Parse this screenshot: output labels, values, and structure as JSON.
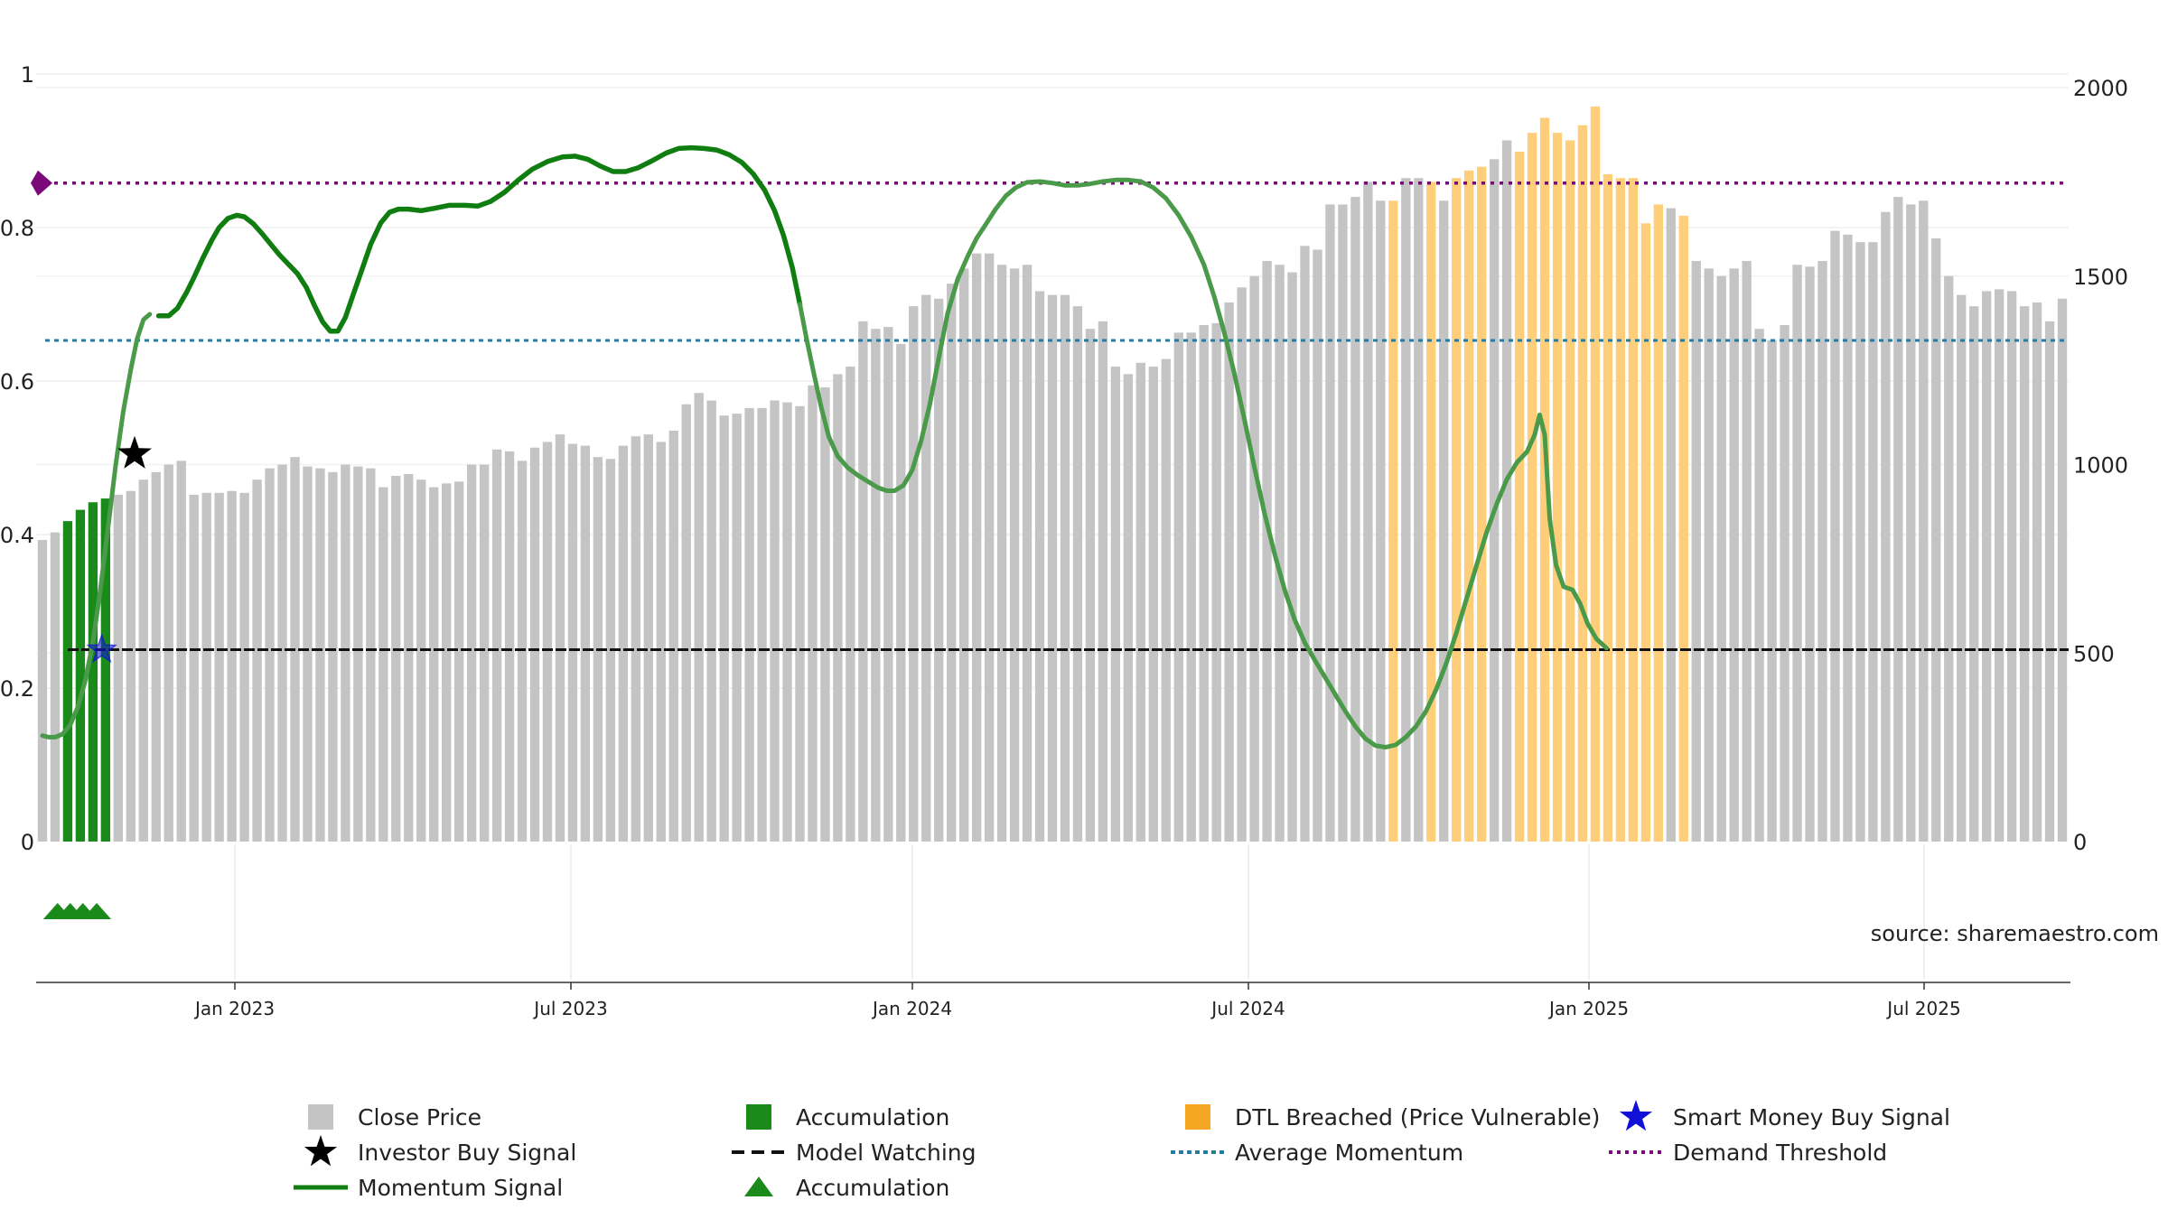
{
  "chart_data": {
    "type": "bar",
    "title": "",
    "source_text": "source: sharemaestro.com",
    "x_axis": {
      "tick_labels": [
        "Jan 2023",
        "Jul 2023",
        "Jan 2024",
        "Jul 2024",
        "Jan 2025",
        "Jul 2025"
      ],
      "range": [
        "2022-09",
        "2025-09"
      ]
    },
    "left_axis": {
      "tick_labels": [
        "0",
        "0.2",
        "0.4",
        "0.6",
        "0.8",
        "1"
      ],
      "range": [
        0,
        1
      ]
    },
    "right_axis": {
      "tick_labels": [
        "0",
        "500",
        "1000",
        "1500",
        "2000"
      ],
      "range": [
        0,
        2000
      ]
    },
    "weekly_close_price": [
      800,
      820,
      850,
      880,
      900,
      910,
      920,
      930,
      960,
      980,
      1000,
      1010,
      920,
      925,
      925,
      930,
      925,
      960,
      990,
      1000,
      1020,
      995,
      990,
      980,
      1000,
      995,
      990,
      940,
      970,
      975,
      960,
      940,
      950,
      955,
      1000,
      1000,
      1040,
      1035,
      1010,
      1045,
      1060,
      1080,
      1055,
      1050,
      1020,
      1015,
      1050,
      1075,
      1080,
      1060,
      1090,
      1160,
      1190,
      1170,
      1130,
      1135,
      1150,
      1150,
      1170,
      1165,
      1155,
      1210,
      1205,
      1240,
      1260,
      1380,
      1360,
      1365,
      1320,
      1420,
      1450,
      1440,
      1480,
      1520,
      1560,
      1560,
      1530,
      1520,
      1530,
      1460,
      1450,
      1450,
      1420,
      1360,
      1380,
      1260,
      1240,
      1270,
      1260,
      1280,
      1350,
      1350,
      1370,
      1375,
      1430,
      1470,
      1500,
      1540,
      1530,
      1510,
      1580,
      1570,
      1690,
      1690,
      1710,
      1750,
      1700,
      1700,
      1760,
      1760,
      1750,
      1700,
      1760,
      1780,
      1790,
      1810,
      1860,
      1830,
      1880,
      1920,
      1880,
      1860,
      1900,
      1950,
      1770,
      1760,
      1760,
      1640,
      1690,
      1680,
      1660,
      1540,
      1520,
      1500,
      1520,
      1540,
      1360,
      1330,
      1370,
      1530,
      1525,
      1540,
      1620,
      1610,
      1590,
      1590,
      1670,
      1710,
      1690,
      1700,
      1600,
      1500,
      1450,
      1420,
      1460,
      1465,
      1460,
      1420,
      1430,
      1380,
      1440
    ],
    "accumulation_bar_indices": [
      2,
      3,
      4,
      5
    ],
    "dtl_breached_bar_indices": [
      107,
      110,
      112,
      113,
      114,
      117,
      118,
      119,
      120,
      121,
      122,
      123,
      124,
      125,
      126,
      127,
      128,
      130
    ],
    "momentum_signal": [
      [
        0.0,
        0.138
      ],
      [
        0.5,
        0.136
      ],
      [
        1.0,
        0.136
      ],
      [
        1.6,
        0.14
      ],
      [
        2.2,
        0.152
      ],
      [
        2.8,
        0.175
      ],
      [
        3.4,
        0.21
      ],
      [
        4.0,
        0.26
      ],
      [
        4.6,
        0.33
      ],
      [
        5.2,
        0.41
      ],
      [
        5.8,
        0.49
      ],
      [
        6.4,
        0.56
      ],
      [
        7.0,
        0.615
      ],
      [
        7.5,
        0.655
      ],
      [
        8.0,
        0.68
      ],
      [
        8.5,
        0.687
      ],
      [
        9.2,
        0.685
      ],
      [
        10.0,
        0.685
      ],
      [
        10.7,
        0.695
      ],
      [
        11.4,
        0.715
      ],
      [
        12.0,
        0.735
      ],
      [
        12.7,
        0.76
      ],
      [
        13.4,
        0.783
      ],
      [
        14.0,
        0.8
      ],
      [
        14.7,
        0.812
      ],
      [
        15.4,
        0.816
      ],
      [
        16.0,
        0.814
      ],
      [
        16.7,
        0.805
      ],
      [
        17.4,
        0.792
      ],
      [
        18.1,
        0.778
      ],
      [
        18.8,
        0.764
      ],
      [
        19.5,
        0.752
      ],
      [
        20.2,
        0.74
      ],
      [
        20.9,
        0.722
      ],
      [
        21.5,
        0.7
      ],
      [
        22.2,
        0.677
      ],
      [
        22.8,
        0.665
      ],
      [
        23.4,
        0.665
      ],
      [
        24.0,
        0.683
      ],
      [
        24.6,
        0.712
      ],
      [
        25.3,
        0.745
      ],
      [
        26.0,
        0.778
      ],
      [
        26.8,
        0.806
      ],
      [
        27.5,
        0.82
      ],
      [
        28.2,
        0.824
      ],
      [
        29.0,
        0.824
      ],
      [
        30.0,
        0.822
      ],
      [
        31.0,
        0.825
      ],
      [
        32.2,
        0.829
      ],
      [
        33.5,
        0.829
      ],
      [
        34.5,
        0.828
      ],
      [
        35.5,
        0.834
      ],
      [
        36.6,
        0.846
      ],
      [
        37.7,
        0.862
      ],
      [
        38.8,
        0.876
      ],
      [
        40.0,
        0.886
      ],
      [
        41.2,
        0.892
      ],
      [
        42.2,
        0.893
      ],
      [
        43.2,
        0.889
      ],
      [
        44.2,
        0.88
      ],
      [
        45.2,
        0.873
      ],
      [
        46.2,
        0.873
      ],
      [
        47.2,
        0.878
      ],
      [
        48.3,
        0.887
      ],
      [
        49.4,
        0.897
      ],
      [
        50.4,
        0.903
      ],
      [
        51.4,
        0.904
      ],
      [
        52.4,
        0.903
      ],
      [
        53.4,
        0.901
      ],
      [
        54.4,
        0.895
      ],
      [
        55.4,
        0.885
      ],
      [
        56.3,
        0.87
      ],
      [
        57.2,
        0.849
      ],
      [
        58.0,
        0.822
      ],
      [
        58.7,
        0.79
      ],
      [
        59.4,
        0.748
      ],
      [
        60.0,
        0.7
      ],
      [
        60.5,
        0.657
      ],
      [
        61.1,
        0.61
      ],
      [
        61.7,
        0.565
      ],
      [
        62.3,
        0.527
      ],
      [
        63.0,
        0.502
      ],
      [
        63.8,
        0.487
      ],
      [
        64.6,
        0.477
      ],
      [
        65.4,
        0.469
      ],
      [
        66.2,
        0.461
      ],
      [
        66.9,
        0.457
      ],
      [
        67.5,
        0.457
      ],
      [
        68.2,
        0.464
      ],
      [
        68.9,
        0.484
      ],
      [
        69.6,
        0.522
      ],
      [
        70.3,
        0.57
      ],
      [
        71.0,
        0.63
      ],
      [
        71.7,
        0.688
      ],
      [
        72.5,
        0.733
      ],
      [
        73.3,
        0.763
      ],
      [
        74.0,
        0.786
      ],
      [
        74.8,
        0.806
      ],
      [
        75.5,
        0.824
      ],
      [
        76.3,
        0.841
      ],
      [
        77.1,
        0.852
      ],
      [
        78.0,
        0.859
      ],
      [
        79.0,
        0.86
      ],
      [
        80.0,
        0.858
      ],
      [
        81.0,
        0.855
      ],
      [
        82.0,
        0.855
      ],
      [
        83.0,
        0.857
      ],
      [
        84.0,
        0.86
      ],
      [
        85.0,
        0.862
      ],
      [
        86.0,
        0.862
      ],
      [
        87.0,
        0.86
      ],
      [
        88.0,
        0.852
      ],
      [
        89.0,
        0.838
      ],
      [
        90.0,
        0.816
      ],
      [
        91.0,
        0.788
      ],
      [
        92.0,
        0.752
      ],
      [
        92.8,
        0.711
      ],
      [
        93.6,
        0.664
      ],
      [
        94.4,
        0.611
      ],
      [
        95.2,
        0.551
      ],
      [
        96.0,
        0.488
      ],
      [
        96.8,
        0.428
      ],
      [
        97.6,
        0.375
      ],
      [
        98.4,
        0.328
      ],
      [
        99.2,
        0.289
      ],
      [
        100.0,
        0.259
      ],
      [
        100.8,
        0.236
      ],
      [
        101.6,
        0.214
      ],
      [
        102.4,
        0.192
      ],
      [
        103.2,
        0.17
      ],
      [
        104.0,
        0.15
      ],
      [
        104.8,
        0.134
      ],
      [
        105.6,
        0.125
      ],
      [
        106.4,
        0.123
      ],
      [
        107.2,
        0.126
      ],
      [
        108.0,
        0.136
      ],
      [
        108.8,
        0.15
      ],
      [
        109.6,
        0.17
      ],
      [
        110.4,
        0.198
      ],
      [
        111.2,
        0.232
      ],
      [
        112.0,
        0.272
      ],
      [
        112.8,
        0.316
      ],
      [
        113.6,
        0.36
      ],
      [
        114.4,
        0.403
      ],
      [
        115.2,
        0.44
      ],
      [
        116.0,
        0.472
      ],
      [
        116.8,
        0.494
      ],
      [
        117.6,
        0.508
      ],
      [
        118.2,
        0.53
      ],
      [
        118.6,
        0.556
      ],
      [
        119.0,
        0.53
      ],
      [
        119.4,
        0.42
      ],
      [
        119.9,
        0.36
      ],
      [
        120.5,
        0.332
      ],
      [
        121.2,
        0.328
      ],
      [
        121.8,
        0.31
      ],
      [
        122.4,
        0.284
      ],
      [
        123.1,
        0.264
      ],
      [
        123.9,
        0.252
      ]
    ],
    "momentum_faded_ranges": [
      [
        0,
        9
      ],
      [
        60,
        160
      ]
    ],
    "momentum_mid_range": [
      30,
      60
    ],
    "average_momentum": 0.653,
    "demand_threshold": 0.858,
    "model_watching_level": 0.25,
    "investor_buy_signal": {
      "bar_index": 7.3,
      "value": 0.505
    },
    "smart_money_buy_signal": {
      "bar_index": 4.7,
      "value": 0.25
    },
    "accumulation_markers_bar_indices": [
      1.2,
      2.2,
      3.2,
      4.3
    ],
    "legend": [
      {
        "id": "close",
        "label": "Close Price"
      },
      {
        "id": "accum-bar",
        "label": "Accumulation"
      },
      {
        "id": "dtl",
        "label": "DTL Breached (Price Vulnerable)"
      },
      {
        "id": "smart",
        "label": "Smart Money Buy Signal"
      },
      {
        "id": "investor",
        "label": "Investor Buy Signal"
      },
      {
        "id": "watching",
        "label": "Model Watching"
      },
      {
        "id": "avgmom",
        "label": "Average Momentum"
      },
      {
        "id": "demand",
        "label": "Demand Threshold"
      },
      {
        "id": "momentum",
        "label": "Momentum Signal"
      },
      {
        "id": "accum-marker",
        "label": "Accumulation"
      }
    ],
    "colors": {
      "close": "#c4c4c4",
      "accumulation": "#1a8a1a",
      "dtl": "#ffce7a",
      "dtl_legend": "#f5a623",
      "momentum": "#0f7d0f",
      "momentum_faded": "#4a9a4a",
      "average_momentum": "#2a7a9c",
      "demand_threshold": "#7a0a7a",
      "model_watching": "#111111",
      "smart_money": "#1010d8",
      "investor": "#000000"
    }
  }
}
